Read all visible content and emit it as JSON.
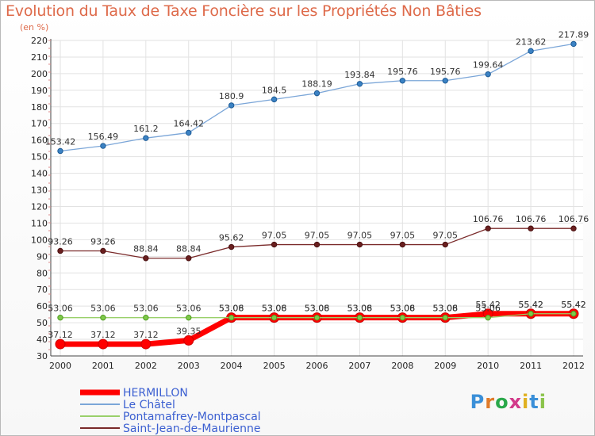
{
  "chart_data": {
    "type": "line",
    "title": "Evolution du Taux de Taxe Foncière sur les Propriétés Non Bâties",
    "ylabel": "(en %)",
    "xlabel": "",
    "x": [
      "2000",
      "2001",
      "2002",
      "2003",
      "2004",
      "2005",
      "2006",
      "2007",
      "2008",
      "2009",
      "2010",
      "2011",
      "2012"
    ],
    "ylim": [
      30,
      220
    ],
    "yticks": [
      30,
      40,
      50,
      60,
      70,
      80,
      90,
      100,
      110,
      120,
      130,
      140,
      150,
      160,
      170,
      180,
      190,
      200,
      210,
      220
    ],
    "grid": true,
    "legend": "bottom-left",
    "series": [
      {
        "name": "HERMILLON",
        "color": "#ff0000",
        "values": [
          37.12,
          37.12,
          37.12,
          39.35,
          53.08,
          53.08,
          53.08,
          53.08,
          53.08,
          53.08,
          55.42,
          55.42,
          55.42
        ],
        "labels": [
          "37.12",
          "37.12",
          "37.12",
          "39.35",
          "53.08",
          "53.08",
          "53.08",
          "53.08",
          "53.08",
          "53.08",
          "55.42",
          "55.42",
          "55.42"
        ]
      },
      {
        "name": "Le Châtel",
        "color": "#7ba6d8",
        "values": [
          153.42,
          156.49,
          161.2,
          164.42,
          180.9,
          184.5,
          188.19,
          193.84,
          195.76,
          195.76,
          199.64,
          213.62,
          217.89
        ],
        "labels": [
          "153.42",
          "156.49",
          "161.2",
          "164.42",
          "180.9",
          "184.5",
          "188.19",
          "193.84",
          "195.76",
          "195.76",
          "199.64",
          "213.62",
          "217.89"
        ]
      },
      {
        "name": "Pontamafrey-Montpascal",
        "color": "#99d06a",
        "values": [
          53.06,
          53.06,
          53.06,
          53.06,
          53.06,
          53.06,
          53.06,
          53.06,
          53.06,
          53.06,
          53.06,
          55.42,
          55.42
        ],
        "labels": [
          "53.06",
          "53.06",
          "53.06",
          "53.06",
          "53.06",
          "53.06",
          "53.06",
          "53.06",
          "53.06",
          "53.06",
          "53.06",
          "55.42",
          "55.42"
        ]
      },
      {
        "name": "Saint-Jean-de-Maurienne",
        "color": "#7a2a2a",
        "values": [
          93.26,
          93.26,
          88.84,
          88.84,
          95.62,
          97.05,
          97.05,
          97.05,
          97.05,
          97.05,
          106.76,
          106.76,
          106.76
        ],
        "labels": [
          "93.26",
          "93.26",
          "88.84",
          "88.84",
          "95.62",
          "97.05",
          "97.05",
          "97.05",
          "97.05",
          "97.05",
          "106.76",
          "106.76",
          "106.76"
        ]
      }
    ]
  },
  "logo": {
    "letters": [
      "P",
      "r",
      "o",
      "x",
      "i",
      "t",
      "i"
    ],
    "colors": [
      "#3a8fd8",
      "#e07b2a",
      "#2aa84a",
      "#d23a8a",
      "#e0b020",
      "#3a8fd8",
      "#8bc34a"
    ]
  }
}
